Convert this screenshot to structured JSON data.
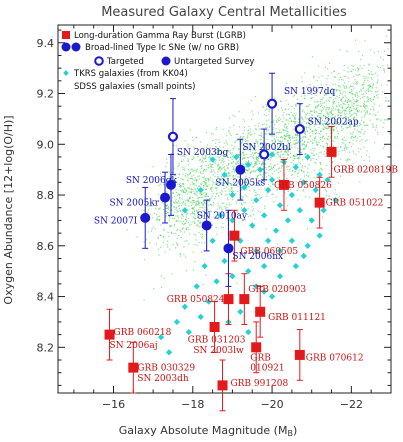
{
  "chart_data": {
    "type": "scatter",
    "title": "Measured Galaxy Central Metallicities",
    "xlabel": "Galaxy Absolute Magnitude (M",
    "xlabel_sub": "B",
    "xlabel_end": ")",
    "ylabel": "Oxygen Abundance [12+log(O/H)]",
    "xlim": [
      -14.6,
      -23.0
    ],
    "ylim": [
      8.02,
      9.47
    ],
    "x_ticks": [
      -16,
      -18,
      -20,
      -22
    ],
    "y_ticks": [
      8.2,
      8.4,
      8.6,
      8.8,
      9.0,
      9.2,
      9.4
    ],
    "x_tick_labels": [
      "−16",
      "−18",
      "−20",
      "−22"
    ],
    "y_tick_labels": [
      "8.2",
      "8.4",
      "8.6",
      "8.8",
      "9.0",
      "9.2",
      "9.4"
    ],
    "colors": {
      "grb": "#e31a1c",
      "sn": "#1a1acc",
      "sdss": "#2ecc40",
      "tkrs": "#22d3d3",
      "label_grb": "#d01010",
      "label_sn": "#1010c0"
    },
    "legend": {
      "placement": "top-left",
      "items": [
        {
          "text": "Long-duration Gamma Ray Burst (LGRB)"
        },
        {
          "text": "Broad-lined Type Ic SNe (w/ no GRB)"
        },
        {
          "text": "Targeted"
        },
        {
          "text": "Untargeted Survey"
        },
        {
          "text": "TKRS galaxies (from KK04)"
        },
        {
          "text": "SDSS galaxies (small points)"
        }
      ]
    },
    "grb_series": [
      {
        "label": "GRB 020819B",
        "x": -21.5,
        "y": 8.97,
        "err": 0.1,
        "lx": -21.55,
        "ly": 8.9,
        "anchor": "start"
      },
      {
        "label": "GRB 050826",
        "x": -20.3,
        "y": 8.84,
        "err": 0.1,
        "lx": -20.05,
        "ly": 8.84,
        "anchor": "start"
      },
      {
        "label": "GRB 051022",
        "x": -21.2,
        "y": 8.77,
        "err": 0.1,
        "lx": -21.35,
        "ly": 8.77,
        "anchor": "start"
      },
      {
        "label": "GRB 060505",
        "x": -19.05,
        "y": 8.64,
        "err": 0.1,
        "lx": -19.2,
        "ly": 8.58,
        "anchor": "start"
      },
      {
        "label": "GRB 050824",
        "x": -18.9,
        "y": 8.39,
        "err": 0.1,
        "lx": -18.8,
        "ly": 8.39,
        "anchor": "end"
      },
      {
        "label": "GRB 020903",
        "x": -19.3,
        "y": 8.39,
        "err": 0.1,
        "lx": -19.4,
        "ly": 8.43,
        "anchor": "start"
      },
      {
        "label": "GRB 011121",
        "x": -19.7,
        "y": 8.34,
        "err": 0.1,
        "lx": -19.9,
        "ly": 8.32,
        "anchor": "start"
      },
      {
        "label": "GRB 060218",
        "x": -15.9,
        "y": 8.25,
        "err": 0.1,
        "lx": -16.0,
        "ly": 8.26,
        "anchor": "start"
      },
      {
        "label": "GRB 031203",
        "x": -18.55,
        "y": 8.28,
        "err": 0.1,
        "lx": -18.6,
        "ly": 8.23,
        "anchor": "middle"
      },
      {
        "label": "GRB",
        "x": -19.6,
        "y": 8.2,
        "err": 0.1,
        "lx": -19.45,
        "ly": 8.16,
        "anchor": "start"
      },
      {
        "label": "GRB 070612",
        "x": -20.7,
        "y": 8.17,
        "err": 0.1,
        "lx": -20.85,
        "ly": 8.16,
        "anchor": "start"
      },
      {
        "label": "GRB 030329",
        "x": -16.5,
        "y": 8.12,
        "err": 0.1,
        "lx": -16.6,
        "ly": 8.12,
        "anchor": "start"
      },
      {
        "label": "GRB 991208",
        "x": -18.75,
        "y": 8.05,
        "err": 0.1,
        "lx": -18.95,
        "ly": 8.06,
        "anchor": "start"
      }
    ],
    "grb_extra_labels": [
      {
        "label": "010921",
        "lx": -19.45,
        "ly": 8.12,
        "anchor": "start"
      }
    ],
    "sn_series": [
      {
        "label": "SN 1997dq",
        "x": -20.0,
        "y": 9.16,
        "err": 0.12,
        "targeted": true,
        "lx": -20.3,
        "ly": 9.21,
        "anchor": "start"
      },
      {
        "label": "SN 2002ap",
        "x": -20.7,
        "y": 9.06,
        "err": 0.1,
        "targeted": true,
        "lx": -20.9,
        "ly": 9.09,
        "anchor": "start"
      },
      {
        "label": "SN 2003bg",
        "x": -17.5,
        "y": 9.03,
        "err": 0.15,
        "targeted": true,
        "lx": -17.6,
        "ly": 8.97,
        "anchor": "start"
      },
      {
        "label": "SN 2002bl",
        "x": -19.8,
        "y": 8.96,
        "err": 0.1,
        "targeted": true,
        "lx": -19.25,
        "ly": 8.99,
        "anchor": "start"
      },
      {
        "label": "SN 2005ks",
        "x": -19.2,
        "y": 8.9,
        "err": 0.12,
        "targeted": false,
        "lx": -19.2,
        "ly": 8.85,
        "anchor": "middle"
      },
      {
        "label": "SN 2006qk",
        "x": -17.45,
        "y": 8.84,
        "err": 0.12,
        "targeted": false,
        "lx": -17.6,
        "ly": 8.86,
        "anchor": "end"
      },
      {
        "label": "SN 2005kr",
        "x": -17.3,
        "y": 8.79,
        "err": 0.1,
        "targeted": false,
        "lx": -17.15,
        "ly": 8.77,
        "anchor": "end"
      },
      {
        "label": "SN 2007I",
        "x": -16.8,
        "y": 8.71,
        "err": 0.12,
        "targeted": false,
        "lx": -16.6,
        "ly": 8.7,
        "anchor": "end"
      },
      {
        "label": "SN 2010ay",
        "x": -18.35,
        "y": 8.68,
        "err": 0.1,
        "targeted": false,
        "lx": -18.1,
        "ly": 8.72,
        "anchor": "start"
      },
      {
        "label": "SN 2006nx",
        "x": -18.9,
        "y": 8.59,
        "err": 0.15,
        "targeted": false,
        "lx": -19.0,
        "ly": 8.56,
        "anchor": "start"
      }
    ],
    "sn_extra_labels": [
      {
        "label": "SN 2006aj",
        "lx": -15.9,
        "ly": 8.21,
        "anchor": "start"
      },
      {
        "label": "SN 2003lw",
        "lx": -18.65,
        "ly": 8.19,
        "anchor": "middle"
      },
      {
        "label": "SN 2003dh",
        "lx": -16.6,
        "ly": 8.08,
        "anchor": "start"
      }
    ],
    "tkrs_series": [
      {
        "x": -18.8,
        "y": 8.88
      },
      {
        "x": -19.1,
        "y": 8.95
      },
      {
        "x": -19.4,
        "y": 8.92
      },
      {
        "x": -19.7,
        "y": 8.9
      },
      {
        "x": -20.0,
        "y": 8.96
      },
      {
        "x": -20.3,
        "y": 8.93
      },
      {
        "x": -20.6,
        "y": 8.91
      },
      {
        "x": -20.9,
        "y": 8.95
      },
      {
        "x": -21.2,
        "y": 8.88
      },
      {
        "x": -19.0,
        "y": 8.8
      },
      {
        "x": -19.3,
        "y": 8.83
      },
      {
        "x": -19.6,
        "y": 8.78
      },
      {
        "x": -19.9,
        "y": 8.82
      },
      {
        "x": -20.2,
        "y": 8.76
      },
      {
        "x": -20.5,
        "y": 8.8
      },
      {
        "x": -20.8,
        "y": 8.85
      },
      {
        "x": -21.1,
        "y": 8.82
      },
      {
        "x": -21.4,
        "y": 8.86
      },
      {
        "x": -18.7,
        "y": 8.72
      },
      {
        "x": -19.0,
        "y": 8.7
      },
      {
        "x": -19.5,
        "y": 8.68
      },
      {
        "x": -19.8,
        "y": 8.72
      },
      {
        "x": -20.1,
        "y": 8.66
      },
      {
        "x": -20.4,
        "y": 8.7
      },
      {
        "x": -20.7,
        "y": 8.74
      },
      {
        "x": -21.0,
        "y": 8.7
      },
      {
        "x": -21.3,
        "y": 8.74
      },
      {
        "x": -18.5,
        "y": 8.62
      },
      {
        "x": -19.2,
        "y": 8.62
      },
      {
        "x": -19.6,
        "y": 8.58
      },
      {
        "x": -19.9,
        "y": 8.62
      },
      {
        "x": -20.2,
        "y": 8.58
      },
      {
        "x": -20.5,
        "y": 8.62
      },
      {
        "x": -20.9,
        "y": 8.6
      },
      {
        "x": -18.3,
        "y": 8.52
      },
      {
        "x": -18.8,
        "y": 8.54
      },
      {
        "x": -19.4,
        "y": 8.5
      },
      {
        "x": -19.8,
        "y": 8.52
      },
      {
        "x": -20.2,
        "y": 8.48
      },
      {
        "x": -20.6,
        "y": 8.52
      },
      {
        "x": -18.1,
        "y": 8.44
      },
      {
        "x": -18.6,
        "y": 8.46
      },
      {
        "x": -19.0,
        "y": 8.48
      },
      {
        "x": -19.6,
        "y": 8.44
      },
      {
        "x": -20.0,
        "y": 8.4
      },
      {
        "x": -17.8,
        "y": 8.36
      },
      {
        "x": -18.4,
        "y": 8.38
      },
      {
        "x": -19.2,
        "y": 8.34
      },
      {
        "x": -19.8,
        "y": 8.42
      },
      {
        "x": -17.6,
        "y": 8.3
      },
      {
        "x": -18.2,
        "y": 8.32
      },
      {
        "x": -17.2,
        "y": 8.24
      },
      {
        "x": -17.9,
        "y": 8.26
      },
      {
        "x": -18.9,
        "y": 8.3
      },
      {
        "x": -19.4,
        "y": 8.26
      },
      {
        "x": -17.4,
        "y": 8.18
      },
      {
        "x": -20.8,
        "y": 8.56
      },
      {
        "x": -21.2,
        "y": 8.64
      },
      {
        "x": -21.6,
        "y": 8.78
      },
      {
        "x": -18.5,
        "y": 8.94
      },
      {
        "x": -18.2,
        "y": 8.82
      },
      {
        "x": -17.8,
        "y": 8.74
      },
      {
        "x": -19.3,
        "y": 8.74
      },
      {
        "x": -20.0,
        "y": 8.86
      }
    ]
  }
}
